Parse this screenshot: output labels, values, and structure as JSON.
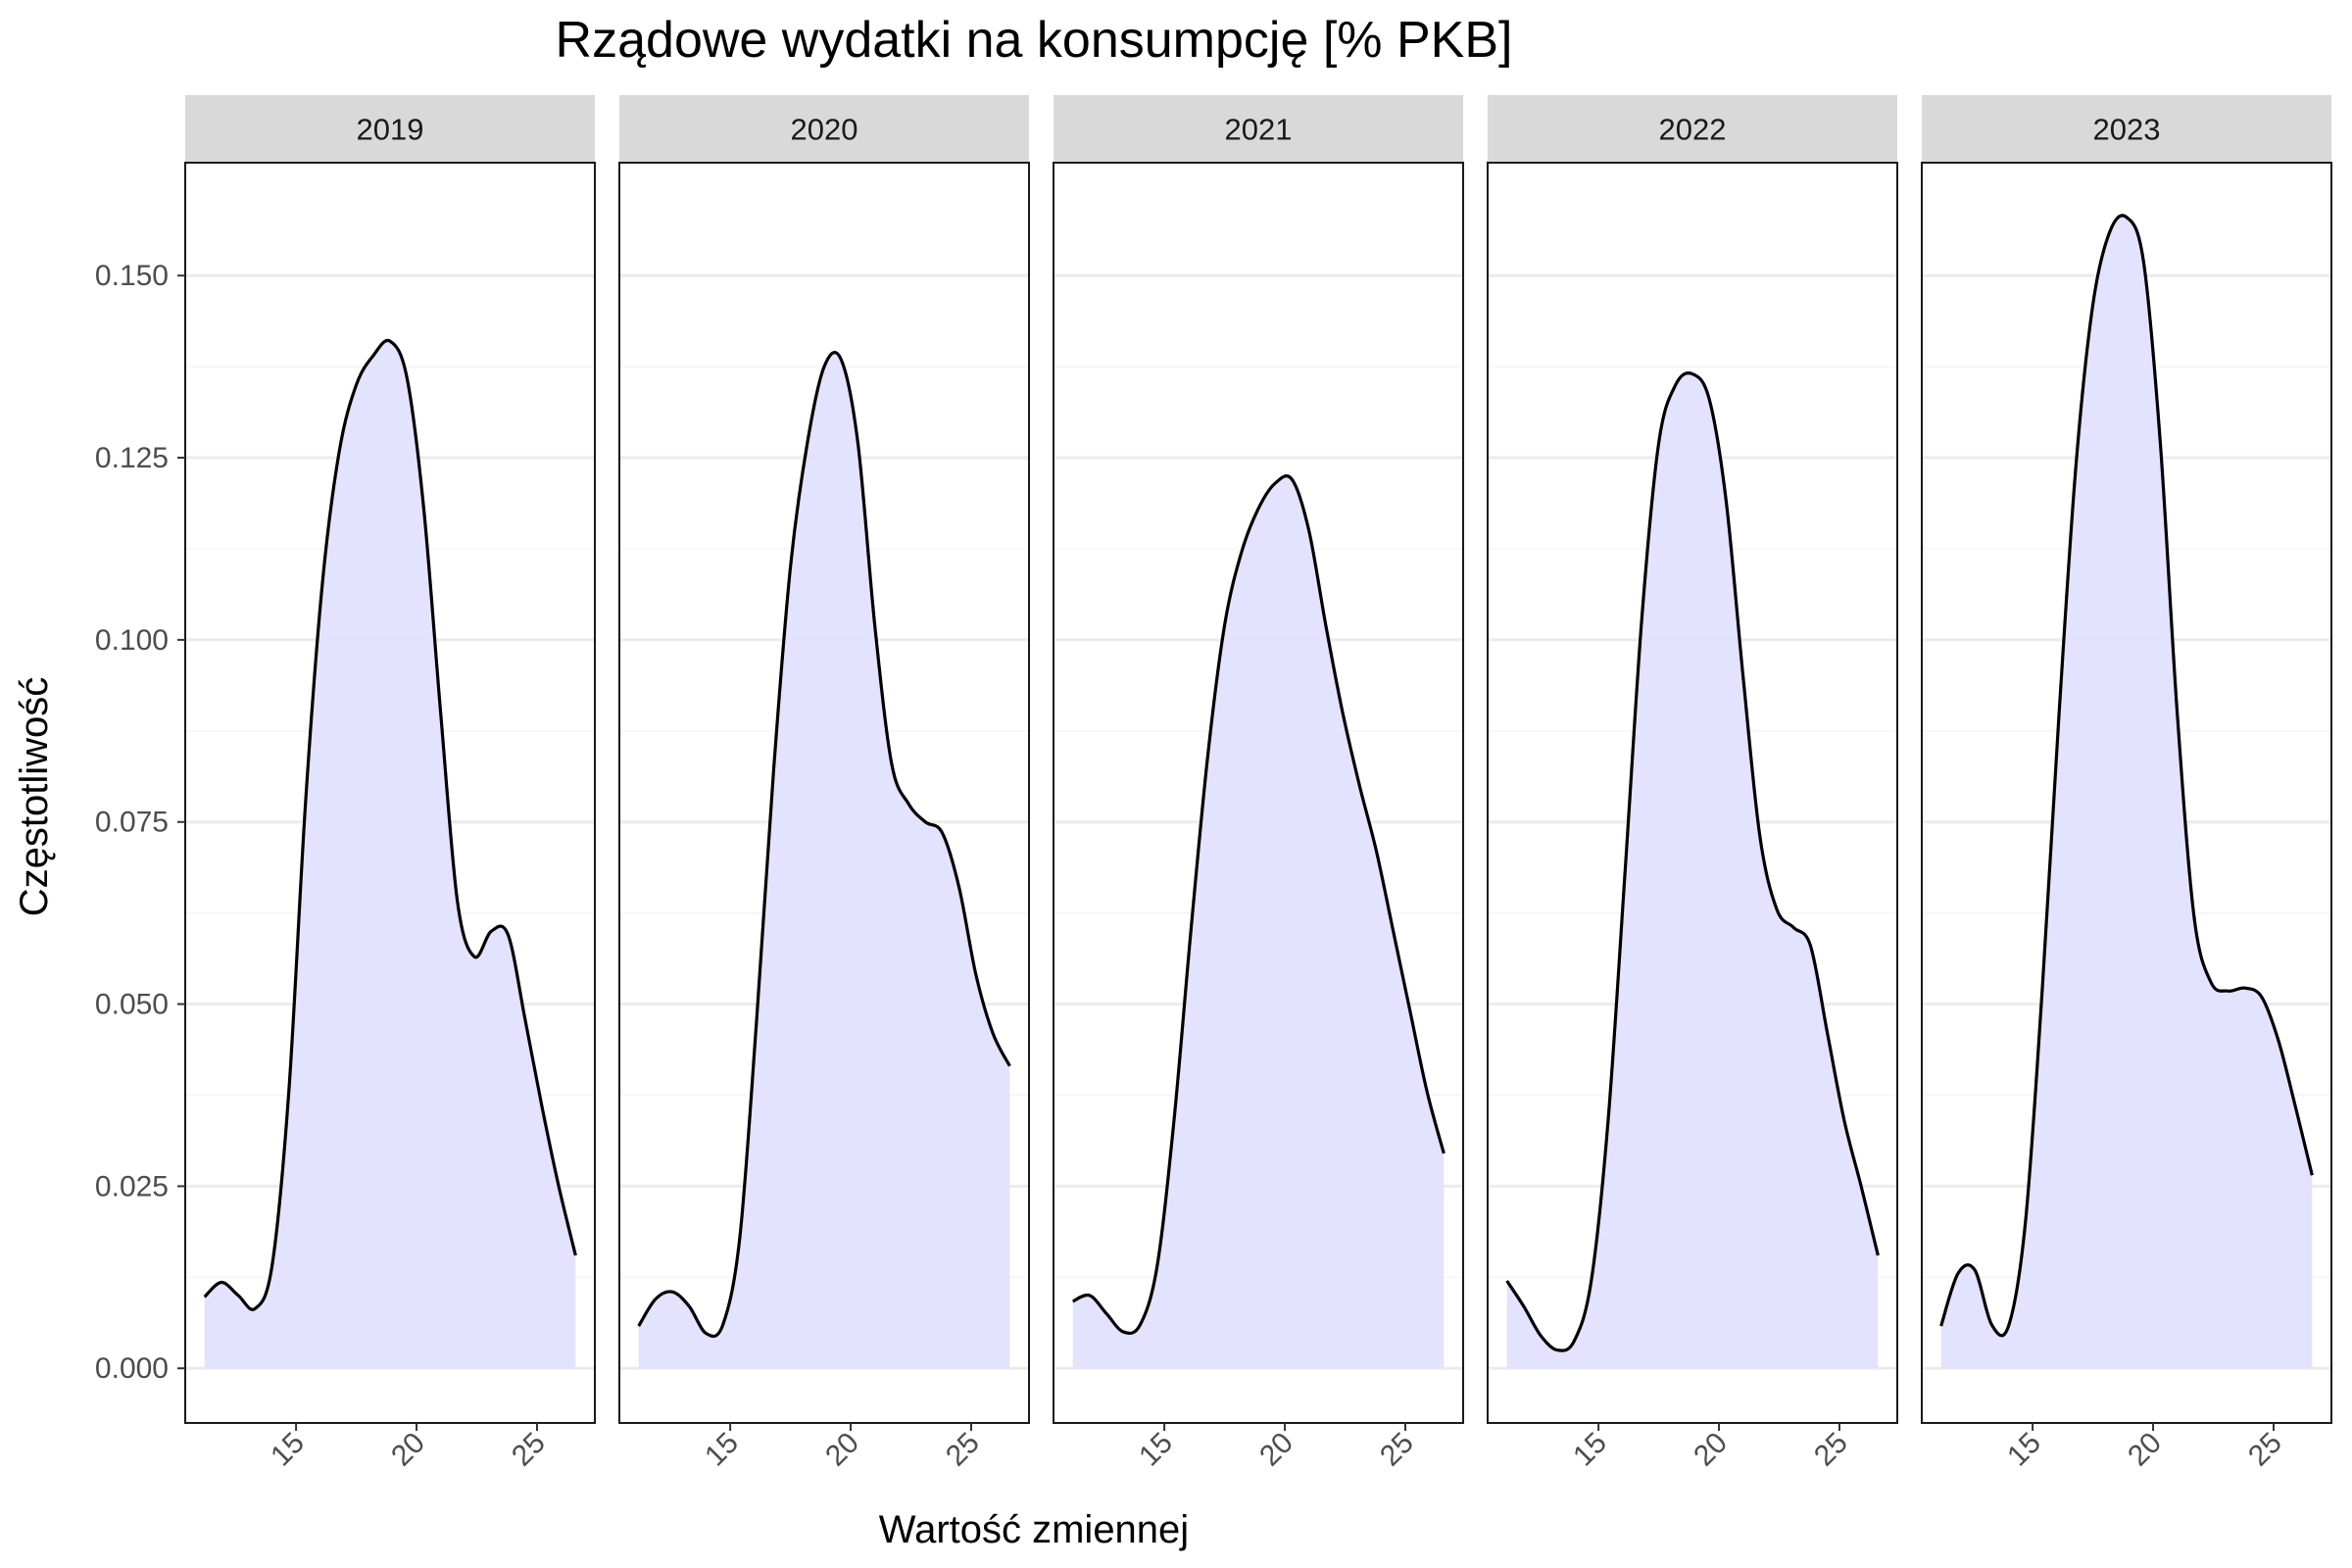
{
  "chart_data": {
    "type": "area",
    "title": "Rządowe wydatki na konsumpcję [% PKB]",
    "xlabel": "Wartość zmiennej",
    "ylabel": "Częstotliwość",
    "xlim": [
      10.4,
      27.4
    ],
    "ylim": [
      -0.0075,
      0.1655
    ],
    "x_ticks": [
      15,
      20,
      25
    ],
    "x_tick_labels": [
      "15",
      "20",
      "25"
    ],
    "y_ticks": [
      0,
      0.025,
      0.05,
      0.075,
      0.1,
      0.125,
      0.15
    ],
    "y_tick_labels": [
      "0.000",
      "0.025",
      "0.050",
      "0.075",
      "0.100",
      "0.125",
      "0.150"
    ],
    "grid": true,
    "fill_color": "#e2e2ff",
    "line_color": "#000000",
    "strip_color": "#d9d9d9",
    "panels": [
      {
        "label": "2019",
        "x": [
          11.2,
          11.9,
          12.6,
          13.3,
          14.0,
          14.7,
          15.4,
          16.1,
          16.8,
          17.5,
          18.2,
          18.9,
          19.6,
          20.3,
          21.0,
          21.7,
          22.4,
          23.1,
          23.8,
          24.5,
          25.2,
          25.9,
          26.6
        ],
        "y": [
          0.0098,
          0.0118,
          0.01,
          0.0082,
          0.014,
          0.038,
          0.078,
          0.108,
          0.126,
          0.135,
          0.139,
          0.141,
          0.136,
          0.118,
          0.09,
          0.064,
          0.0565,
          0.06,
          0.0595,
          0.048,
          0.036,
          0.025,
          0.0155
        ]
      },
      {
        "label": "2020",
        "x": [
          11.2,
          11.9,
          12.6,
          13.3,
          14.0,
          14.7,
          15.4,
          16.1,
          16.8,
          17.5,
          18.2,
          18.9,
          19.6,
          20.3,
          21.0,
          21.7,
          22.4,
          23.1,
          23.8,
          24.5,
          25.2,
          25.9,
          26.6
        ],
        "y": [
          0.0058,
          0.0095,
          0.0105,
          0.0085,
          0.0048,
          0.006,
          0.018,
          0.048,
          0.082,
          0.11,
          0.127,
          0.1375,
          0.1385,
          0.127,
          0.102,
          0.083,
          0.0775,
          0.075,
          0.0735,
          0.066,
          0.054,
          0.046,
          0.0415
        ]
      },
      {
        "label": "2021",
        "x": [
          11.2,
          11.9,
          12.6,
          13.3,
          14.0,
          14.7,
          15.4,
          16.1,
          16.8,
          17.5,
          18.2,
          18.9,
          19.6,
          20.3,
          21.0,
          21.7,
          22.4,
          23.1,
          23.8,
          24.5,
          25.2,
          25.9,
          26.6
        ],
        "y": [
          0.0092,
          0.01,
          0.0075,
          0.005,
          0.006,
          0.014,
          0.034,
          0.06,
          0.084,
          0.102,
          0.112,
          0.118,
          0.1215,
          0.122,
          0.115,
          0.102,
          0.09,
          0.08,
          0.071,
          0.06,
          0.049,
          0.038,
          0.0295
        ]
      },
      {
        "label": "2022",
        "x": [
          11.2,
          11.9,
          12.6,
          13.3,
          14.0,
          14.7,
          15.4,
          16.1,
          16.8,
          17.5,
          18.2,
          18.9,
          19.6,
          20.3,
          21.0,
          21.7,
          22.4,
          23.1,
          23.8,
          24.5,
          25.2,
          25.9,
          26.6
        ],
        "y": [
          0.012,
          0.0085,
          0.0045,
          0.0025,
          0.0038,
          0.012,
          0.034,
          0.068,
          0.103,
          0.127,
          0.135,
          0.1365,
          0.133,
          0.119,
          0.095,
          0.073,
          0.063,
          0.0605,
          0.058,
          0.046,
          0.034,
          0.025,
          0.0155
        ]
      },
      {
        "label": "2023",
        "x": [
          11.2,
          11.9,
          12.6,
          13.3,
          14.0,
          14.7,
          15.4,
          16.1,
          16.8,
          17.5,
          18.2,
          18.9,
          19.6,
          20.3,
          21.0,
          21.7,
          22.4,
          23.1,
          23.8,
          24.5,
          25.2,
          25.9,
          26.6
        ],
        "y": [
          0.0058,
          0.013,
          0.0135,
          0.006,
          0.0058,
          0.02,
          0.052,
          0.09,
          0.124,
          0.146,
          0.156,
          0.158,
          0.152,
          0.127,
          0.09,
          0.062,
          0.053,
          0.0518,
          0.0522,
          0.051,
          0.045,
          0.036,
          0.0265
        ]
      }
    ]
  }
}
